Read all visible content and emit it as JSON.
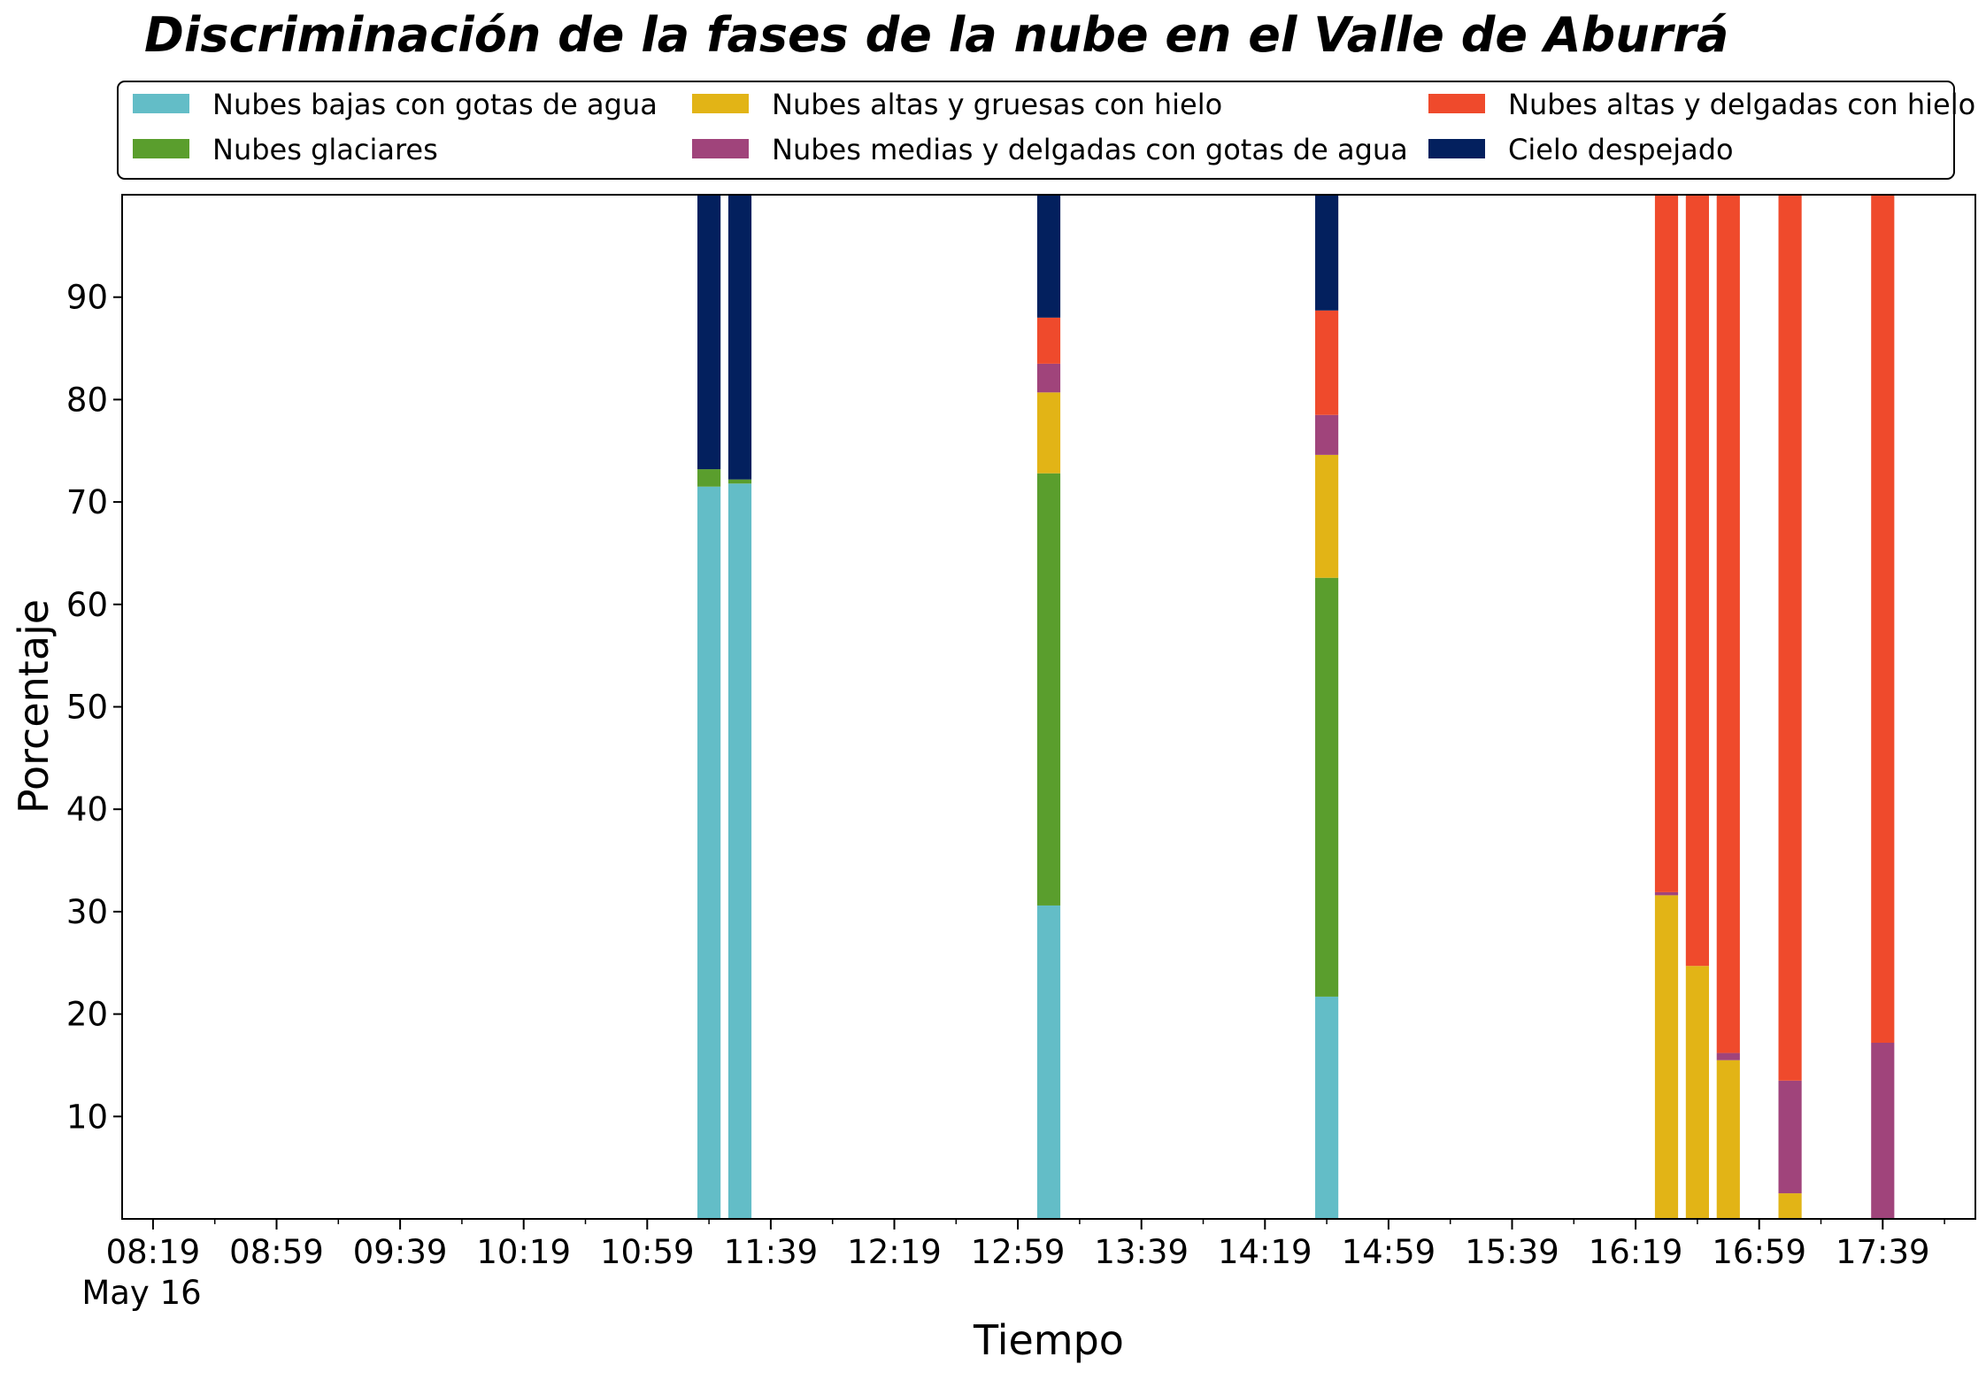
{
  "chart_data": {
    "type": "bar",
    "stacked": true,
    "title": "Discriminación de la fases de la nube en el Valle de Aburrá",
    "xlabel": "Tiempo",
    "ylabel": "Porcentaje",
    "xlim": [
      "08:09",
      "18:09"
    ],
    "ylim": [
      0,
      100
    ],
    "x_ticks": [
      "08:19",
      "08:59",
      "09:39",
      "10:19",
      "10:59",
      "11:39",
      "12:19",
      "12:59",
      "13:39",
      "14:19",
      "14:59",
      "15:39",
      "16:19",
      "16:59",
      "17:39"
    ],
    "x_date_label": "May 16",
    "y_ticks": [
      10,
      20,
      30,
      40,
      50,
      60,
      70,
      80,
      90
    ],
    "legend_position": "top",
    "series": [
      {
        "name": "Nubes bajas con gotas de agua",
        "color": "#63BDC7"
      },
      {
        "name": "Nubes glaciares",
        "color": "#5A9E2D"
      },
      {
        "name": "Nubes altas y gruesas con hielo",
        "color": "#E2B416"
      },
      {
        "name": "Nubes medias y delgadas con gotas de agua",
        "color": "#A0447B"
      },
      {
        "name": "Nubes altas y delgadas con hielo",
        "color": "#EF4A2C"
      },
      {
        "name": "Cielo despejado",
        "color": "#03205E"
      }
    ],
    "bars": [
      {
        "time": "11:19",
        "values": [
          71.5,
          1.7,
          0,
          0,
          0,
          26.8
        ]
      },
      {
        "time": "11:29",
        "values": [
          71.8,
          0.4,
          0,
          0,
          0,
          27.8
        ]
      },
      {
        "time": "13:09",
        "values": [
          30.6,
          42.2,
          7.9,
          2.8,
          4.5,
          12.0
        ]
      },
      {
        "time": "14:39",
        "values": [
          21.7,
          40.9,
          12.0,
          3.9,
          10.2,
          11.3
        ]
      },
      {
        "time": "16:29",
        "values": [
          0,
          0,
          31.6,
          0.3,
          68.1,
          0
        ]
      },
      {
        "time": "16:39",
        "values": [
          0,
          0,
          24.7,
          0,
          75.3,
          0
        ]
      },
      {
        "time": "16:49",
        "values": [
          0,
          0,
          15.5,
          0.7,
          83.8,
          0
        ]
      },
      {
        "time": "17:09",
        "values": [
          0,
          0,
          2.5,
          11.0,
          86.5,
          0
        ]
      },
      {
        "time": "17:39",
        "values": [
          0,
          0,
          0,
          17.2,
          82.8,
          0
        ]
      }
    ]
  }
}
